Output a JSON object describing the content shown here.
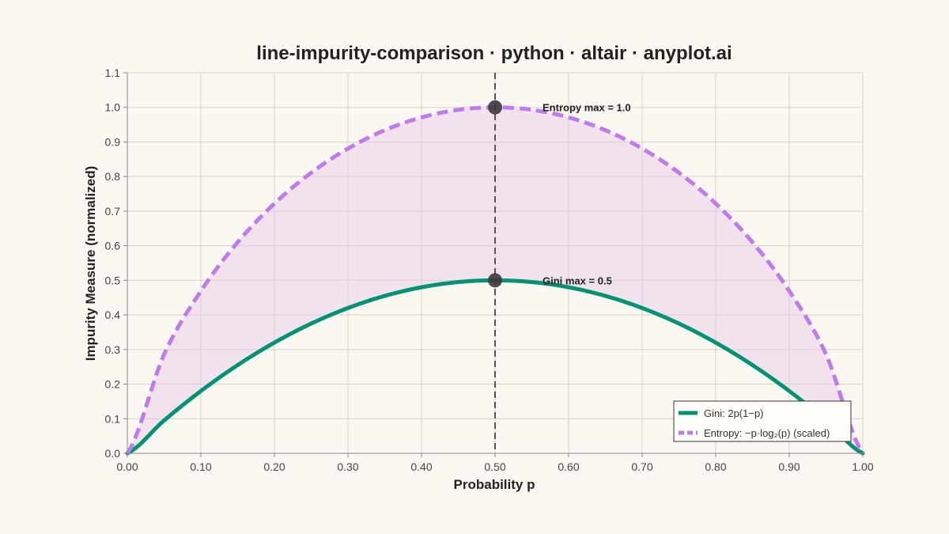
{
  "chart_data": {
    "type": "line",
    "title": "line-impurity-comparison · python · altair · anyplot.ai",
    "xlabel": "Probability p",
    "ylabel": "Impurity Measure (normalized)",
    "xlim": [
      0.0,
      1.0
    ],
    "ylim": [
      0.0,
      1.1
    ],
    "x_ticks": [
      "0.00",
      "0.10",
      "0.20",
      "0.30",
      "0.40",
      "0.50",
      "0.60",
      "0.70",
      "0.80",
      "0.90",
      "1.00"
    ],
    "y_ticks": [
      "0.0",
      "0.1",
      "0.2",
      "0.3",
      "0.4",
      "0.5",
      "0.6",
      "0.7",
      "0.8",
      "0.9",
      "1.0",
      "1.1"
    ],
    "grid": true,
    "x": [
      0.0,
      0.05,
      0.1,
      0.15,
      0.2,
      0.25,
      0.3,
      0.35,
      0.4,
      0.45,
      0.5,
      0.55,
      0.6,
      0.65,
      0.7,
      0.75,
      0.8,
      0.85,
      0.9,
      0.95,
      1.0
    ],
    "series": [
      {
        "name": "Gini: 2p(1−p)",
        "color": "#009473",
        "dash": "solid",
        "values": [
          0.0,
          0.095,
          0.18,
          0.255,
          0.32,
          0.375,
          0.42,
          0.455,
          0.48,
          0.495,
          0.5,
          0.495,
          0.48,
          0.455,
          0.42,
          0.375,
          0.32,
          0.255,
          0.18,
          0.095,
          0.0
        ]
      },
      {
        "name": "Entropy: −p·log₂(p) (scaled)",
        "color": "#c07af0",
        "dash": "dashed",
        "values": [
          0.0,
          0.286,
          0.469,
          0.61,
          0.722,
          0.811,
          0.881,
          0.934,
          0.971,
          0.993,
          1.0,
          0.993,
          0.971,
          0.934,
          0.881,
          0.811,
          0.722,
          0.61,
          0.469,
          0.286,
          0.0
        ]
      }
    ],
    "fill_between": {
      "color": "#e7c8ea",
      "opacity": 0.45
    },
    "reference_line": {
      "x": 0.5,
      "style": "dashed",
      "color": "#555555"
    },
    "markers": [
      {
        "x": 0.5,
        "y": 1.0,
        "label": "Entropy max = 1.0"
      },
      {
        "x": 0.5,
        "y": 0.5,
        "label": "Gini max = 0.5"
      }
    ],
    "legend": {
      "placement": "bottom-right",
      "entries": [
        "Gini: 2p(1−p)",
        "Entropy: −p·log₂(p) (scaled)"
      ]
    }
  }
}
